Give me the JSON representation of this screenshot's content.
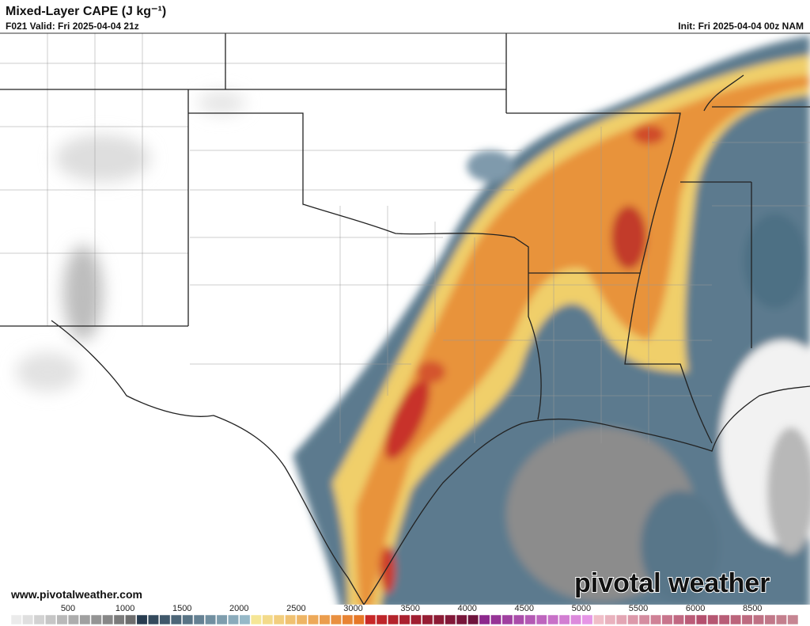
{
  "header": {
    "title": "Mixed-Layer CAPE (J kg⁻¹)",
    "valid": "F021 Valid: Fri 2025-04-04 21z",
    "init": "Init: Fri 2025-04-04 00z NAM"
  },
  "watermark": {
    "url": "www.pivotalweather.com",
    "brand": "pivotal weather"
  },
  "colorbar": {
    "labels": [
      500,
      1000,
      1500,
      2000,
      2500,
      3000,
      3500,
      4000,
      4500,
      5000,
      5500,
      6000,
      8500
    ]
  }
}
